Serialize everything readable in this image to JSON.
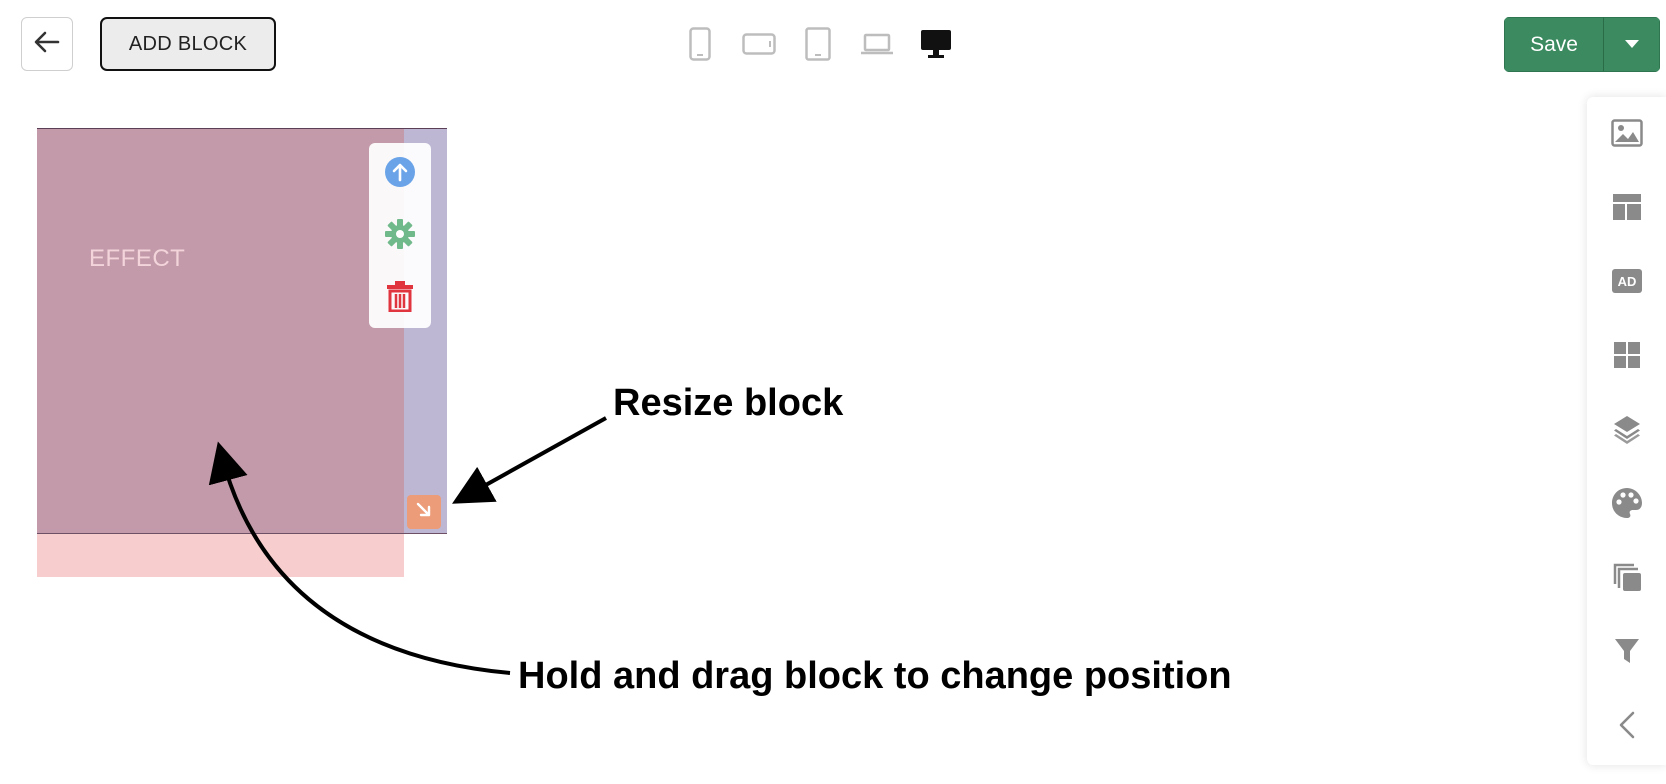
{
  "toolbar": {
    "back_icon": "arrow-left-icon",
    "add_block_label": "ADD BLOCK",
    "devices": [
      "mobile-portrait-icon",
      "mobile-landscape-icon",
      "tablet-icon",
      "laptop-icon",
      "desktop-icon"
    ],
    "active_device": "desktop-icon",
    "save_label": "Save",
    "save_dropdown_icon": "caret-down-icon"
  },
  "canvas": {
    "block_label": "EFFECT",
    "block_tools": [
      "move-up-icon",
      "settings-gear-icon",
      "delete-trash-icon"
    ],
    "resize_icon": "resize-arrow-icon"
  },
  "annotations": {
    "resize": "Resize block",
    "drag": "Hold and drag block to change position"
  },
  "sidebar": {
    "items": [
      "image-icon",
      "layout-icon",
      "ad-icon",
      "grid-icon",
      "layers-icon",
      "palette-icon",
      "copy-icon",
      "filter-icon",
      "collapse-chevron-icon"
    ]
  },
  "colors": {
    "save_green": "#3b8a60",
    "block_pink": "#c29aa9",
    "block_purple": "#bcbdd8",
    "resize_orange": "#ec9c78",
    "delete_red": "#e0343f",
    "up_blue": "#5e9ee6",
    "gear_green": "#6fb98a"
  }
}
